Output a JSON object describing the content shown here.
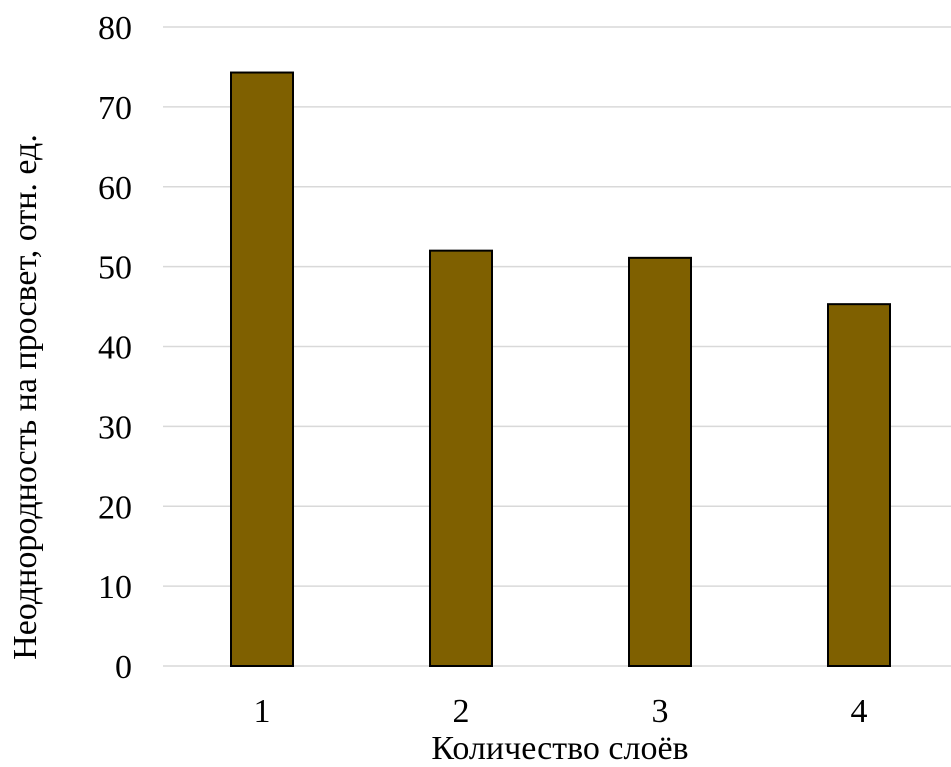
{
  "chart_data": {
    "type": "bar",
    "categories": [
      "1",
      "2",
      "3",
      "4"
    ],
    "values": [
      74.3,
      52.0,
      51.1,
      45.3
    ],
    "xlabel": "Количество слоёв",
    "ylabel": "Неоднородность на просвет, отн. ед.",
    "ylim": [
      0,
      80
    ],
    "yticks": [
      0,
      10,
      20,
      30,
      40,
      50,
      60,
      70,
      80
    ],
    "ytick_labels": [
      "0",
      "10",
      "20",
      "30",
      "40",
      "50",
      "60",
      "70",
      "80"
    ],
    "grid": "horizontal",
    "bar_color": "#7f6000",
    "legend": "none"
  }
}
